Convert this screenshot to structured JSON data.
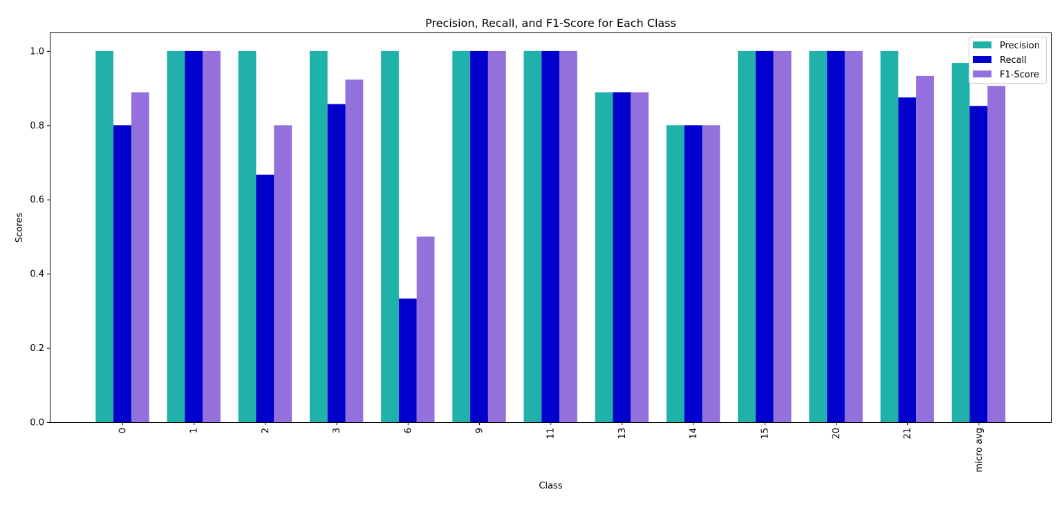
{
  "chart_data": {
    "type": "bar",
    "title": "Precision, Recall, and F1-Score for Each Class",
    "xlabel": "Class",
    "ylabel": "Scores",
    "categories": [
      "0",
      "1",
      "2",
      "3",
      "6",
      "9",
      "11",
      "13",
      "14",
      "15",
      "20",
      "21",
      "micro avg"
    ],
    "series": [
      {
        "name": "Precision",
        "color": "#20b2aa",
        "values": [
          1.0,
          1.0,
          1.0,
          1.0,
          1.0,
          1.0,
          1.0,
          0.889,
          0.8,
          1.0,
          1.0,
          1.0,
          0.968
        ]
      },
      {
        "name": "Recall",
        "color": "#0000cd",
        "values": [
          0.8,
          1.0,
          0.667,
          0.857,
          0.333,
          1.0,
          1.0,
          0.889,
          0.8,
          1.0,
          1.0,
          0.875,
          0.852
        ]
      },
      {
        "name": "F1-Score",
        "color": "#9370db",
        "values": [
          0.889,
          1.0,
          0.8,
          0.923,
          0.5,
          1.0,
          1.0,
          0.889,
          0.8,
          1.0,
          1.0,
          0.933,
          0.906
        ]
      }
    ],
    "ylim": [
      0,
      1.05
    ],
    "yticks": [
      "0.0",
      "0.2",
      "0.4",
      "0.6",
      "0.8",
      "1.0"
    ],
    "xtick_rotation": "vertical",
    "legend": "top-right",
    "grid": false
  }
}
